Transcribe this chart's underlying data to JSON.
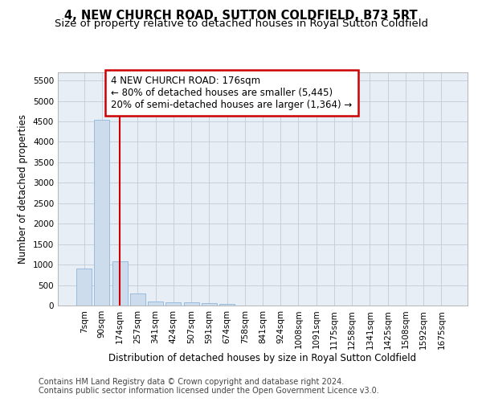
{
  "title": "4, NEW CHURCH ROAD, SUTTON COLDFIELD, B73 5RT",
  "subtitle": "Size of property relative to detached houses in Royal Sutton Coldfield",
  "xlabel": "Distribution of detached houses by size in Royal Sutton Coldfield",
  "ylabel": "Number of detached properties",
  "categories": [
    "7sqm",
    "90sqm",
    "174sqm",
    "257sqm",
    "341sqm",
    "424sqm",
    "507sqm",
    "591sqm",
    "674sqm",
    "758sqm",
    "841sqm",
    "924sqm",
    "1008sqm",
    "1091sqm",
    "1175sqm",
    "1258sqm",
    "1341sqm",
    "1425sqm",
    "1508sqm",
    "1592sqm",
    "1675sqm"
  ],
  "values": [
    900,
    4550,
    1075,
    290,
    90,
    75,
    75,
    50,
    45,
    0,
    0,
    0,
    0,
    0,
    0,
    0,
    0,
    0,
    0,
    0,
    0
  ],
  "bar_color": "#ccdcec",
  "bar_edge_color": "#99bbdd",
  "vline_x_index": 2,
  "vline_color": "#cc0000",
  "ylim": [
    0,
    5700
  ],
  "yticks": [
    0,
    500,
    1000,
    1500,
    2000,
    2500,
    3000,
    3500,
    4000,
    4500,
    5000,
    5500
  ],
  "annotation_box_text": "4 NEW CHURCH ROAD: 176sqm\n← 80% of detached houses are smaller (5,445)\n20% of semi-detached houses are larger (1,364) →",
  "annotation_box_color": "#ffffff",
  "annotation_box_edge_color": "#cc0000",
  "footer1": "Contains HM Land Registry data © Crown copyright and database right 2024.",
  "footer2": "Contains public sector information licensed under the Open Government Licence v3.0.",
  "background_color": "#ffffff",
  "plot_bg_color": "#e8eef6",
  "grid_color": "#c0ccd8",
  "title_fontsize": 10.5,
  "subtitle_fontsize": 9.5,
  "axis_label_fontsize": 8.5,
  "tick_fontsize": 7.5,
  "annotation_fontsize": 8.5,
  "footer_fontsize": 7.0
}
